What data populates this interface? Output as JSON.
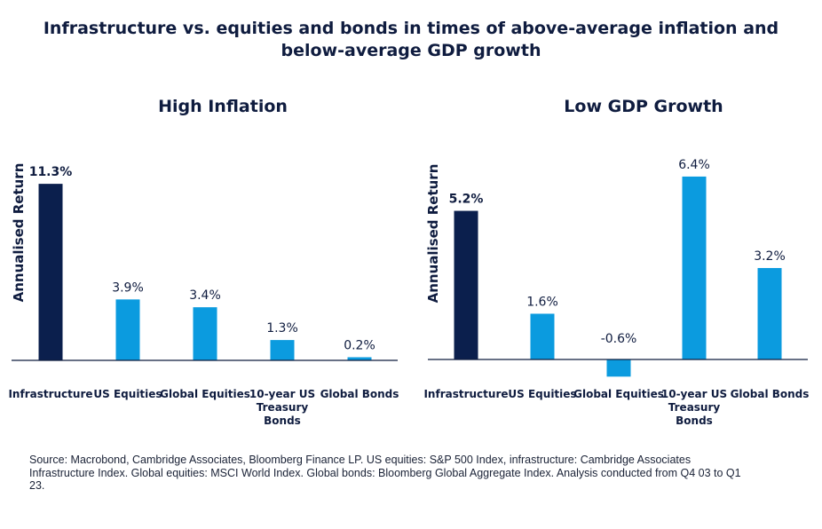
{
  "header": {
    "title_line1": "Infrastructure vs. equities and bonds in times of above-average inflation and",
    "title_line2": "below-average GDP growth"
  },
  "footnote": {
    "line1": "Source: Macrobond, Cambridge Associates, Bloomberg Finance LP. US equities: S&P 500 Index, infrastructure: Cambridge Associates",
    "line2": "Infrastructure Index. Global equities: MSCI World Index. Global bonds: Bloomberg Global Aggregate Index. Analysis conducted from Q4 03 to Q1",
    "line3": "23."
  },
  "colors": {
    "highlight": "#0b1f4d",
    "bar": "#0b9bdf",
    "axis": "#0f1c3f",
    "text": "#0f1c3f"
  },
  "chart_data": [
    {
      "type": "bar",
      "title": "High Inflation",
      "ylabel": "Annualised Return",
      "unit": "%",
      "categories": [
        "Infrastructure",
        "US Equities",
        "Global Equities",
        "10-year US Treasury Bonds",
        "Global Bonds"
      ],
      "category_lines": [
        [
          "Infrastructure"
        ],
        [
          "US Equities"
        ],
        [
          "Global Equities"
        ],
        [
          "10-year US",
          "Treasury",
          "Bonds"
        ],
        [
          "Global Bonds"
        ]
      ],
      "values": [
        11.3,
        3.9,
        3.4,
        1.3,
        0.2
      ],
      "labels": [
        "11.3%",
        "3.9%",
        "3.4%",
        "1.3%",
        "0.2%"
      ],
      "highlight_index": 0,
      "ylim": [
        0,
        11.3
      ],
      "grid": false
    },
    {
      "type": "bar",
      "title": "Low GDP Growth",
      "ylabel": "Annualised Return",
      "unit": "%",
      "categories": [
        "Infrastructure",
        "US Equities",
        "Global Equities",
        "10-year US Treasury Bonds",
        "Global Bonds"
      ],
      "category_lines": [
        [
          "Infrastructure"
        ],
        [
          "US Equities"
        ],
        [
          "Global Equities"
        ],
        [
          "10-year US",
          "Treasury",
          "Bonds"
        ],
        [
          "Global Bonds"
        ]
      ],
      "values": [
        5.2,
        1.6,
        -0.6,
        6.4,
        3.2
      ],
      "labels": [
        "5.2%",
        "1.6%",
        "-0.6%",
        "6.4%",
        "3.2%"
      ],
      "highlight_index": 0,
      "ylim": [
        -0.6,
        6.4
      ],
      "grid": false
    }
  ]
}
